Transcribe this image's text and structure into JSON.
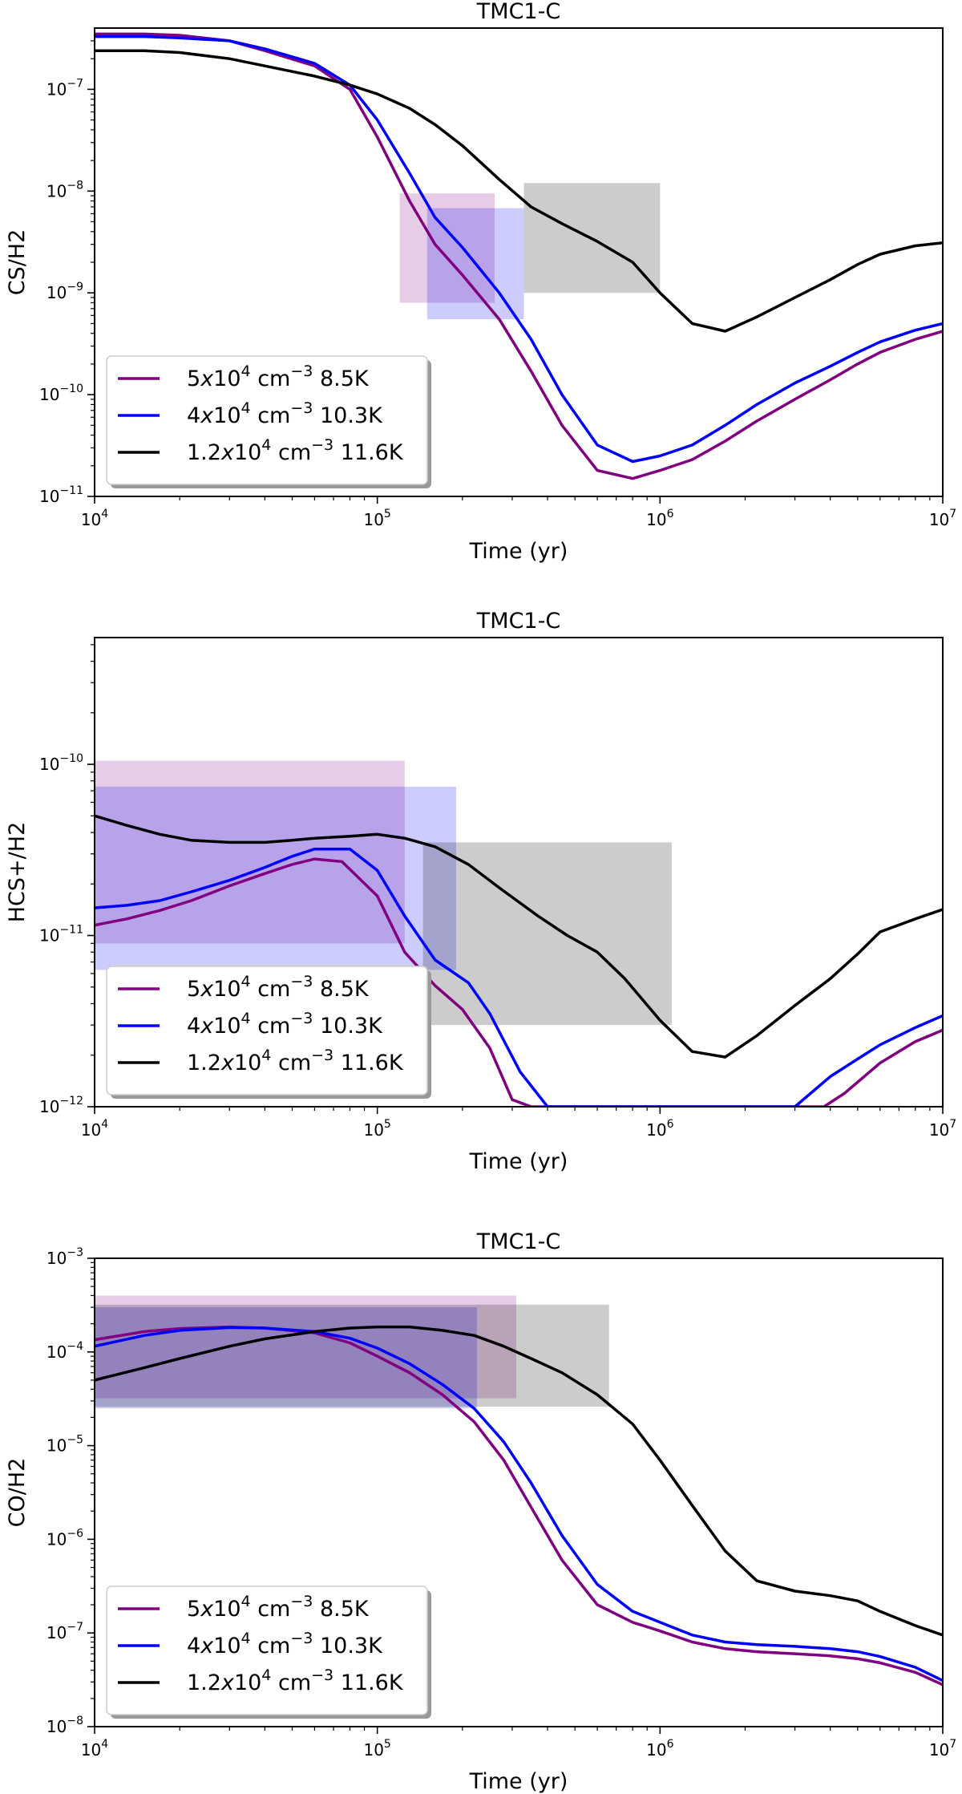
{
  "chart_data": [
    {
      "type": "line",
      "title": "TMC1-C",
      "xlabel": "Time (yr)",
      "ylabel": "CS/H2",
      "xscale": "log",
      "yscale": "log",
      "xlim": [
        10000,
        10000000
      ],
      "ylim": [
        1e-11,
        4e-07
      ],
      "xticks": [
        {
          "base": "10",
          "exp": "4",
          "value": 10000
        },
        {
          "base": "10",
          "exp": "5",
          "value": 100000
        },
        {
          "base": "10",
          "exp": "6",
          "value": 1000000
        },
        {
          "base": "10",
          "exp": "7",
          "value": 10000000
        }
      ],
      "yticks": [
        {
          "base": "10",
          "exp": "−11",
          "value": 1e-11
        },
        {
          "base": "10",
          "exp": "−10",
          "value": 1e-10
        },
        {
          "base": "10",
          "exp": "−9",
          "value": 1e-09
        },
        {
          "base": "10",
          "exp": "−8",
          "value": 1e-08
        },
        {
          "base": "10",
          "exp": "−7",
          "value": 1e-07
        }
      ],
      "legend": {
        "placement": "lower-left"
      },
      "series": [
        {
          "name": "5x10^4 cm^-3 8.5K",
          "legend_pre": "5",
          "legend_mid": "x",
          "legend_base": "10",
          "legend_exp": "4",
          "legend_unit": " cm",
          "legend_unit_exp": "−3",
          "legend_post": " 8.5K",
          "color": "#800080",
          "x": [
            10000,
            15000,
            20000,
            30000,
            40000,
            60000,
            80000,
            100000,
            130000,
            160000,
            200000,
            270000,
            350000,
            450000,
            600000,
            800000,
            1000000,
            1300000,
            1700000,
            2200000,
            3000000,
            4000000,
            5000000,
            6000000,
            8000000,
            10000000
          ],
          "y": [
            3.5e-07,
            3.5e-07,
            3.4e-07,
            3e-07,
            2.4e-07,
            1.7e-07,
            1e-07,
            3.4e-08,
            8e-09,
            3e-09,
            1.5e-09,
            5.5e-10,
            1.7e-10,
            5e-11,
            1.8e-11,
            1.5e-11,
            1.8e-11,
            2.3e-11,
            3.5e-11,
            5.5e-11,
            9e-11,
            1.4e-10,
            2e-10,
            2.6e-10,
            3.5e-10,
            4.2e-10
          ]
        },
        {
          "name": "4x10^4 cm^-3 10.3K",
          "legend_pre": "4",
          "legend_mid": "x",
          "legend_base": "10",
          "legend_exp": "4",
          "legend_unit": " cm",
          "legend_unit_exp": "−3",
          "legend_post": " 10.3K",
          "color": "#0000ff",
          "x": [
            10000,
            15000,
            20000,
            30000,
            40000,
            60000,
            80000,
            100000,
            130000,
            160000,
            200000,
            270000,
            350000,
            450000,
            600000,
            800000,
            1000000,
            1300000,
            1700000,
            2200000,
            3000000,
            4000000,
            5000000,
            6000000,
            8000000,
            10000000
          ],
          "y": [
            3.3e-07,
            3.3e-07,
            3.2e-07,
            3e-07,
            2.5e-07,
            1.8e-07,
            1.1e-07,
            5e-08,
            1.5e-08,
            5.5e-09,
            2.8e-09,
            1e-09,
            3.5e-10,
            1e-10,
            3.2e-11,
            2.2e-11,
            2.5e-11,
            3.2e-11,
            5e-11,
            8e-11,
            1.3e-10,
            1.9e-10,
            2.6e-10,
            3.3e-10,
            4.3e-10,
            5e-10
          ]
        },
        {
          "name": "1.2x10^4 cm^-3 11.6K",
          "legend_pre": "1.2",
          "legend_mid": "x",
          "legend_base": "10",
          "legend_exp": "4",
          "legend_unit": " cm",
          "legend_unit_exp": "−3",
          "legend_post": " 11.6K",
          "color": "#000000",
          "x": [
            10000,
            15000,
            20000,
            30000,
            40000,
            60000,
            80000,
            100000,
            130000,
            160000,
            200000,
            270000,
            350000,
            450000,
            600000,
            800000,
            1000000,
            1300000,
            1700000,
            2200000,
            3000000,
            4000000,
            5000000,
            6000000,
            8000000,
            10000000
          ],
          "y": [
            2.4e-07,
            2.4e-07,
            2.3e-07,
            2e-07,
            1.7e-07,
            1.35e-07,
            1.1e-07,
            9e-08,
            6.5e-08,
            4.5e-08,
            2.8e-08,
            1.3e-08,
            7e-09,
            4.8e-09,
            3.2e-09,
            2e-09,
            1e-09,
            5e-10,
            4.2e-10,
            5.8e-10,
            9e-10,
            1.35e-09,
            1.9e-09,
            2.4e-09,
            2.9e-09,
            3.1e-09
          ]
        }
      ],
      "rects": [
        {
          "x0": 120000,
          "x1": 260000,
          "y0": 8e-10,
          "y1": 9.5e-09,
          "color": "#800080",
          "alpha": 0.2
        },
        {
          "x0": 150000,
          "x1": 330000,
          "y0": 5.5e-10,
          "y1": 6.8e-09,
          "color": "#0000ff",
          "alpha": 0.2
        },
        {
          "x0": 330000,
          "x1": 1000000,
          "y0": 1e-09,
          "y1": 1.2e-08,
          "color": "#000000",
          "alpha": 0.2
        }
      ]
    },
    {
      "type": "line",
      "title": "TMC1-C",
      "xlabel": "Time (yr)",
      "ylabel": "HCS+/H2",
      "xscale": "log",
      "yscale": "log",
      "xlim": [
        10000,
        10000000
      ],
      "ylim": [
        1e-12,
        5.5e-10
      ],
      "xticks": [
        {
          "base": "10",
          "exp": "4",
          "value": 10000
        },
        {
          "base": "10",
          "exp": "5",
          "value": 100000
        },
        {
          "base": "10",
          "exp": "6",
          "value": 1000000
        },
        {
          "base": "10",
          "exp": "7",
          "value": 10000000
        }
      ],
      "yticks": [
        {
          "base": "10",
          "exp": "−12",
          "value": 1e-12
        },
        {
          "base": "10",
          "exp": "−11",
          "value": 1e-11
        },
        {
          "base": "10",
          "exp": "−10",
          "value": 1e-10
        }
      ],
      "legend": {
        "placement": "lower-left"
      },
      "series": [
        {
          "name": "5x10^4 cm^-3 8.5K",
          "legend_pre": "5",
          "legend_mid": "x",
          "legend_base": "10",
          "legend_exp": "4",
          "legend_unit": " cm",
          "legend_unit_exp": "−3",
          "legend_post": " 8.5K",
          "color": "#800080",
          "x": [
            10000,
            13000,
            17000,
            22000,
            30000,
            40000,
            50000,
            60000,
            75000,
            100000,
            125000,
            160000,
            200000,
            250000,
            300000,
            350000,
            3800000,
            4500000,
            6000000,
            8000000,
            10000000
          ],
          "y": [
            1.15e-11,
            1.25e-11,
            1.4e-11,
            1.6e-11,
            1.95e-11,
            2.3e-11,
            2.6e-11,
            2.8e-11,
            2.7e-11,
            1.7e-11,
            8e-12,
            5.1e-12,
            3.7e-12,
            2.2e-12,
            1.1e-12,
            1e-12,
            1e-12,
            1.2e-12,
            1.8e-12,
            2.4e-12,
            2.8e-12
          ]
        },
        {
          "name": "4x10^4 cm^-3 10.3K",
          "legend_pre": "4",
          "legend_mid": "x",
          "legend_base": "10",
          "legend_exp": "4",
          "legend_unit": " cm",
          "legend_unit_exp": "−3",
          "legend_post": " 10.3K",
          "color": "#0000ff",
          "x": [
            10000,
            13000,
            17000,
            22000,
            30000,
            40000,
            50000,
            60000,
            80000,
            100000,
            125000,
            160000,
            210000,
            250000,
            320000,
            400000,
            3000000,
            4000000,
            5000000,
            6000000,
            8000000,
            10000000
          ],
          "y": [
            1.45e-11,
            1.5e-11,
            1.6e-11,
            1.8e-11,
            2.1e-11,
            2.5e-11,
            2.9e-11,
            3.2e-11,
            3.2e-11,
            2.4e-11,
            1.3e-11,
            7.2e-12,
            5.3e-12,
            3.5e-12,
            1.6e-12,
            1e-12,
            1e-12,
            1.5e-12,
            1.9e-12,
            2.3e-12,
            2.9e-12,
            3.4e-12
          ]
        },
        {
          "name": "1.2x10^4 cm^-3 11.6K",
          "legend_pre": "1.2",
          "legend_mid": "x",
          "legend_base": "10",
          "legend_exp": "4",
          "legend_unit": " cm",
          "legend_unit_exp": "−3",
          "legend_post": " 11.6K",
          "color": "#000000",
          "x": [
            10000,
            13000,
            17000,
            22000,
            30000,
            40000,
            50000,
            60000,
            80000,
            100000,
            125000,
            160000,
            210000,
            270000,
            370000,
            470000,
            600000,
            750000,
            1000000,
            1300000,
            1700000,
            2200000,
            3000000,
            4000000,
            5000000,
            6000000,
            8000000,
            10000000
          ],
          "y": [
            5e-11,
            4.4e-11,
            3.9e-11,
            3.6e-11,
            3.5e-11,
            3.5e-11,
            3.6e-11,
            3.7e-11,
            3.8e-11,
            3.9e-11,
            3.7e-11,
            3.3e-11,
            2.6e-11,
            1.9e-11,
            1.3e-11,
            1e-11,
            8e-12,
            5.6e-12,
            3.2e-12,
            2.1e-12,
            1.95e-12,
            2.6e-12,
            3.9e-12,
            5.6e-12,
            7.8e-12,
            1.05e-11,
            1.25e-11,
            1.42e-11
          ]
        }
      ],
      "rects": [
        {
          "x0": 10000,
          "x1": 125000,
          "y0": 9e-12,
          "y1": 1.05e-10,
          "color": "#800080",
          "alpha": 0.2
        },
        {
          "x0": 10000,
          "x1": 190000,
          "y0": 6.3e-12,
          "y1": 7.4e-11,
          "color": "#0000ff",
          "alpha": 0.2
        },
        {
          "x0": 145000,
          "x1": 1100000,
          "y0": 3e-12,
          "y1": 3.5e-11,
          "color": "#000000",
          "alpha": 0.2
        }
      ]
    },
    {
      "type": "line",
      "title": "TMC1-C",
      "xlabel": "Time (yr)",
      "ylabel": "CO/H2",
      "xscale": "log",
      "yscale": "log",
      "xlim": [
        10000,
        10000000
      ],
      "ylim": [
        1e-08,
        0.001
      ],
      "xticks": [
        {
          "base": "10",
          "exp": "4",
          "value": 10000
        },
        {
          "base": "10",
          "exp": "5",
          "value": 100000
        },
        {
          "base": "10",
          "exp": "6",
          "value": 1000000
        },
        {
          "base": "10",
          "exp": "7",
          "value": 10000000
        }
      ],
      "yticks": [
        {
          "base": "10",
          "exp": "−8",
          "value": 1e-08
        },
        {
          "base": "10",
          "exp": "−7",
          "value": 1e-07
        },
        {
          "base": "10",
          "exp": "−6",
          "value": 1e-06
        },
        {
          "base": "10",
          "exp": "−5",
          "value": 1e-05
        },
        {
          "base": "10",
          "exp": "−4",
          "value": 0.0001
        },
        {
          "base": "10",
          "exp": "−3",
          "value": 0.001
        }
      ],
      "legend": {
        "placement": "lower-left"
      },
      "series": [
        {
          "name": "5x10^4 cm^-3 8.5K",
          "legend_pre": "5",
          "legend_mid": "x",
          "legend_base": "10",
          "legend_exp": "4",
          "legend_unit": " cm",
          "legend_unit_exp": "−3",
          "legend_post": " 8.5K",
          "color": "#800080",
          "x": [
            10000,
            15000,
            20000,
            30000,
            40000,
            60000,
            80000,
            100000,
            130000,
            170000,
            220000,
            280000,
            350000,
            450000,
            600000,
            800000,
            1000000,
            1300000,
            1700000,
            2200000,
            3000000,
            4000000,
            5000000,
            6000000,
            8000000,
            10000000
          ],
          "y": [
            0.000135,
            0.000165,
            0.000178,
            0.000185,
            0.00018,
            0.00016,
            0.000125,
            9e-05,
            6e-05,
            3.5e-05,
            1.8e-05,
            7e-06,
            2.2e-06,
            6e-07,
            2e-07,
            1.3e-07,
            1.05e-07,
            8e-08,
            6.8e-08,
            6.3e-08,
            6e-08,
            5.7e-08,
            5.3e-08,
            4.8e-08,
            3.8e-08,
            2.8e-08
          ]
        },
        {
          "name": "4x10^4 cm^-3 10.3K",
          "legend_pre": "4",
          "legend_mid": "x",
          "legend_base": "10",
          "legend_exp": "4",
          "legend_unit": " cm",
          "legend_unit_exp": "−3",
          "legend_post": " 10.3K",
          "color": "#0000ff",
          "x": [
            10000,
            15000,
            20000,
            30000,
            40000,
            60000,
            80000,
            100000,
            130000,
            170000,
            220000,
            280000,
            350000,
            450000,
            600000,
            800000,
            1000000,
            1300000,
            1700000,
            2200000,
            3000000,
            4000000,
            5000000,
            6000000,
            8000000,
            10000000
          ],
          "y": [
            0.000115,
            0.00015,
            0.00017,
            0.000182,
            0.00018,
            0.000165,
            0.00014,
            0.00011,
            7.5e-05,
            4.5e-05,
            2.5e-05,
            1.1e-05,
            4e-06,
            1.1e-06,
            3.3e-07,
            1.7e-07,
            1.3e-07,
            9.5e-08,
            8e-08,
            7.5e-08,
            7.2e-08,
            6.8e-08,
            6.3e-08,
            5.6e-08,
            4.3e-08,
            3.1e-08
          ]
        },
        {
          "name": "1.2x10^4 cm^-3 11.6K",
          "legend_pre": "1.2",
          "legend_mid": "x",
          "legend_base": "10",
          "legend_exp": "4",
          "legend_unit": " cm",
          "legend_unit_exp": "−3",
          "legend_post": " 11.6K",
          "color": "#000000",
          "x": [
            10000,
            15000,
            20000,
            30000,
            40000,
            60000,
            80000,
            100000,
            130000,
            170000,
            220000,
            280000,
            350000,
            450000,
            600000,
            800000,
            1000000,
            1300000,
            1700000,
            2200000,
            3000000,
            4000000,
            5000000,
            6000000,
            8000000,
            10000000
          ],
          "y": [
            5e-05,
            6.8e-05,
            8.5e-05,
            0.000115,
            0.000138,
            0.000165,
            0.00018,
            0.000185,
            0.000185,
            0.00017,
            0.00015,
            0.000115,
            8.5e-05,
            6e-05,
            3.5e-05,
            1.7e-05,
            7e-06,
            2.3e-06,
            7.5e-07,
            3.6e-07,
            2.8e-07,
            2.5e-07,
            2.2e-07,
            1.7e-07,
            1.2e-07,
            9.5e-08
          ]
        }
      ],
      "rects": [
        {
          "x0": 10000,
          "x1": 310000,
          "y0": 3.2e-05,
          "y1": 0.0004,
          "color": "#800080",
          "alpha": 0.2
        },
        {
          "x0": 10000,
          "x1": 225000,
          "y0": 2.5e-05,
          "y1": 0.0003,
          "color": "#0000ff",
          "alpha": 0.2
        },
        {
          "x0": 10000,
          "x1": 660000,
          "y0": 2.6e-05,
          "y1": 0.00032,
          "color": "#000000",
          "alpha": 0.2
        }
      ]
    }
  ]
}
